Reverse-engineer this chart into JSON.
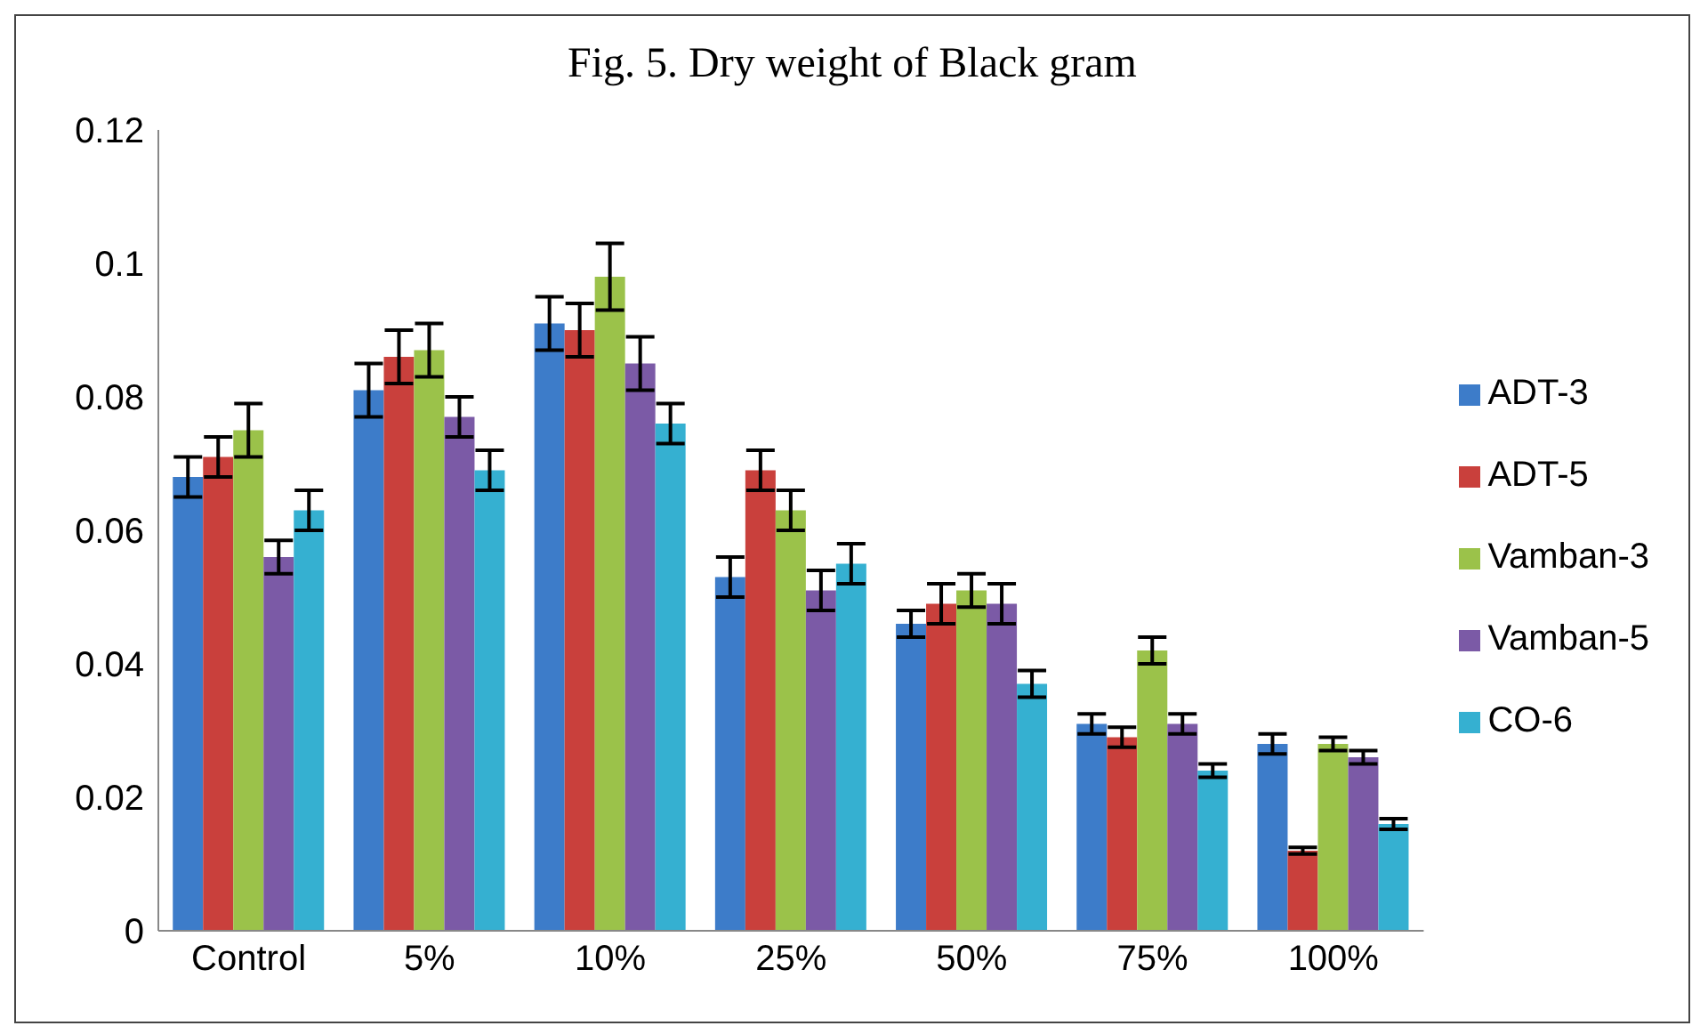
{
  "chart_data": {
    "type": "bar",
    "title": "Fig. 5. Dry weight of Black gram",
    "categories": [
      "Control",
      "5%",
      "10%",
      "25%",
      "50%",
      "75%",
      "100%"
    ],
    "series": [
      {
        "name": "ADT-3",
        "color": "#3d7cc9",
        "values": [
          0.068,
          0.081,
          0.091,
          0.053,
          0.046,
          0.031,
          0.028
        ],
        "errors": [
          0.003,
          0.004,
          0.004,
          0.003,
          0.002,
          0.0015,
          0.0015
        ]
      },
      {
        "name": "ADT-5",
        "color": "#c9403c",
        "values": [
          0.071,
          0.086,
          0.09,
          0.069,
          0.049,
          0.029,
          0.012
        ],
        "errors": [
          0.003,
          0.004,
          0.004,
          0.003,
          0.003,
          0.0015,
          0.0005
        ]
      },
      {
        "name": "Vamban-3",
        "color": "#9bc24a",
        "values": [
          0.075,
          0.087,
          0.098,
          0.063,
          0.051,
          0.042,
          0.028
        ],
        "errors": [
          0.004,
          0.004,
          0.005,
          0.003,
          0.0025,
          0.002,
          0.001
        ]
      },
      {
        "name": "Vamban-5",
        "color": "#7b5aa6",
        "values": [
          0.056,
          0.077,
          0.085,
          0.051,
          0.049,
          0.031,
          0.026
        ],
        "errors": [
          0.0025,
          0.003,
          0.004,
          0.003,
          0.003,
          0.0015,
          0.001
        ]
      },
      {
        "name": "CO-6",
        "color": "#35b0d1",
        "values": [
          0.063,
          0.069,
          0.076,
          0.055,
          0.037,
          0.024,
          0.016
        ],
        "errors": [
          0.003,
          0.003,
          0.003,
          0.003,
          0.002,
          0.001,
          0.0008
        ]
      }
    ],
    "ylim": [
      0,
      0.12
    ],
    "yticks": [
      0,
      0.02,
      0.04,
      0.06,
      0.08,
      0.1,
      0.12
    ],
    "legend": "right"
  }
}
